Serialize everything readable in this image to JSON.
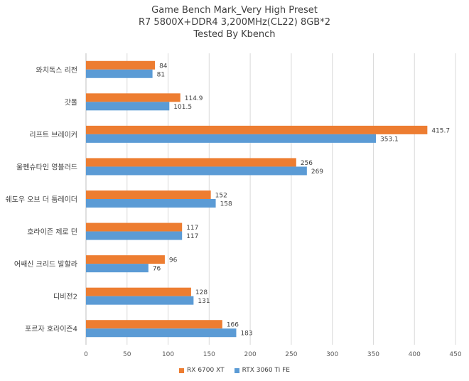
{
  "chart_data": {
    "type": "bar",
    "orientation": "horizontal",
    "title": "Game Bench Mark_Very High Preset",
    "subtitle_lines": [
      "R7 5800X+DDR4 3,200MHz(CL22) 8GB*2",
      "Tested By Kbench"
    ],
    "categories": [
      "와치독스 리전",
      "갓폴",
      "리프트 브레이커",
      "울펜슈타인 영블러드",
      "쉐도우 오브 더 툼레이더",
      "호라이즌 제로 던",
      "어쌔신 크리드 발할라",
      "디비전2",
      "포르자 호라이즌4"
    ],
    "series": [
      {
        "name": "RX 6700 XT",
        "color": "#ED7D31",
        "values": [
          84,
          114.9,
          415.7,
          256,
          152,
          117,
          96,
          128,
          166
        ]
      },
      {
        "name": "RTX 3060 Ti FE",
        "color": "#5B9BD5",
        "values": [
          81,
          101.5,
          353.1,
          269,
          158,
          117,
          76,
          131,
          183
        ]
      }
    ],
    "value_labels": [
      [
        "84",
        "114.9",
        "415.7",
        "256",
        "152",
        "117",
        "96",
        "128",
        "166"
      ],
      [
        "81",
        "101.5",
        "353.1",
        "269",
        "158",
        "117",
        "76",
        "131",
        "183"
      ]
    ],
    "xlim": [
      0,
      450
    ],
    "x_ticks": [
      "0",
      "50",
      "100",
      "150",
      "200",
      "250",
      "300",
      "350",
      "400",
      "450"
    ],
    "grid": true,
    "legend_position": "bottom"
  }
}
